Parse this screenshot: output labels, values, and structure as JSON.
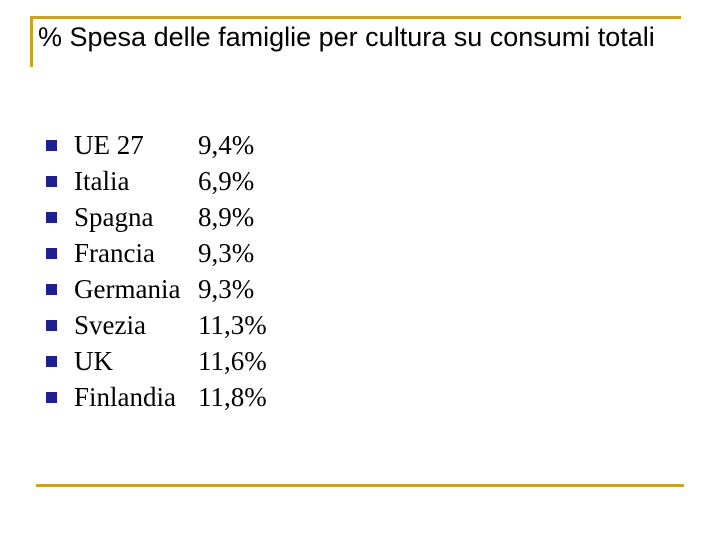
{
  "slide": {
    "title": "% Spesa delle famiglie per cultura su consumi totali",
    "accent_color": "#c9a227",
    "bullet_color": "#1f1f8f",
    "items": [
      {
        "country": "UE 27",
        "value": "9,4%"
      },
      {
        "country": "Italia",
        "value": "6,9%"
      },
      {
        "country": "Spagna",
        "value": "8,9%"
      },
      {
        "country": "Francia",
        "value": "9,3%"
      },
      {
        "country": "Germania",
        "value": "9,3%"
      },
      {
        "country": "Svezia",
        "value": "11,3%"
      },
      {
        "country": "UK",
        "value": "11,6%"
      },
      {
        "country": "Finlandia",
        "value": "11,8%"
      }
    ]
  }
}
